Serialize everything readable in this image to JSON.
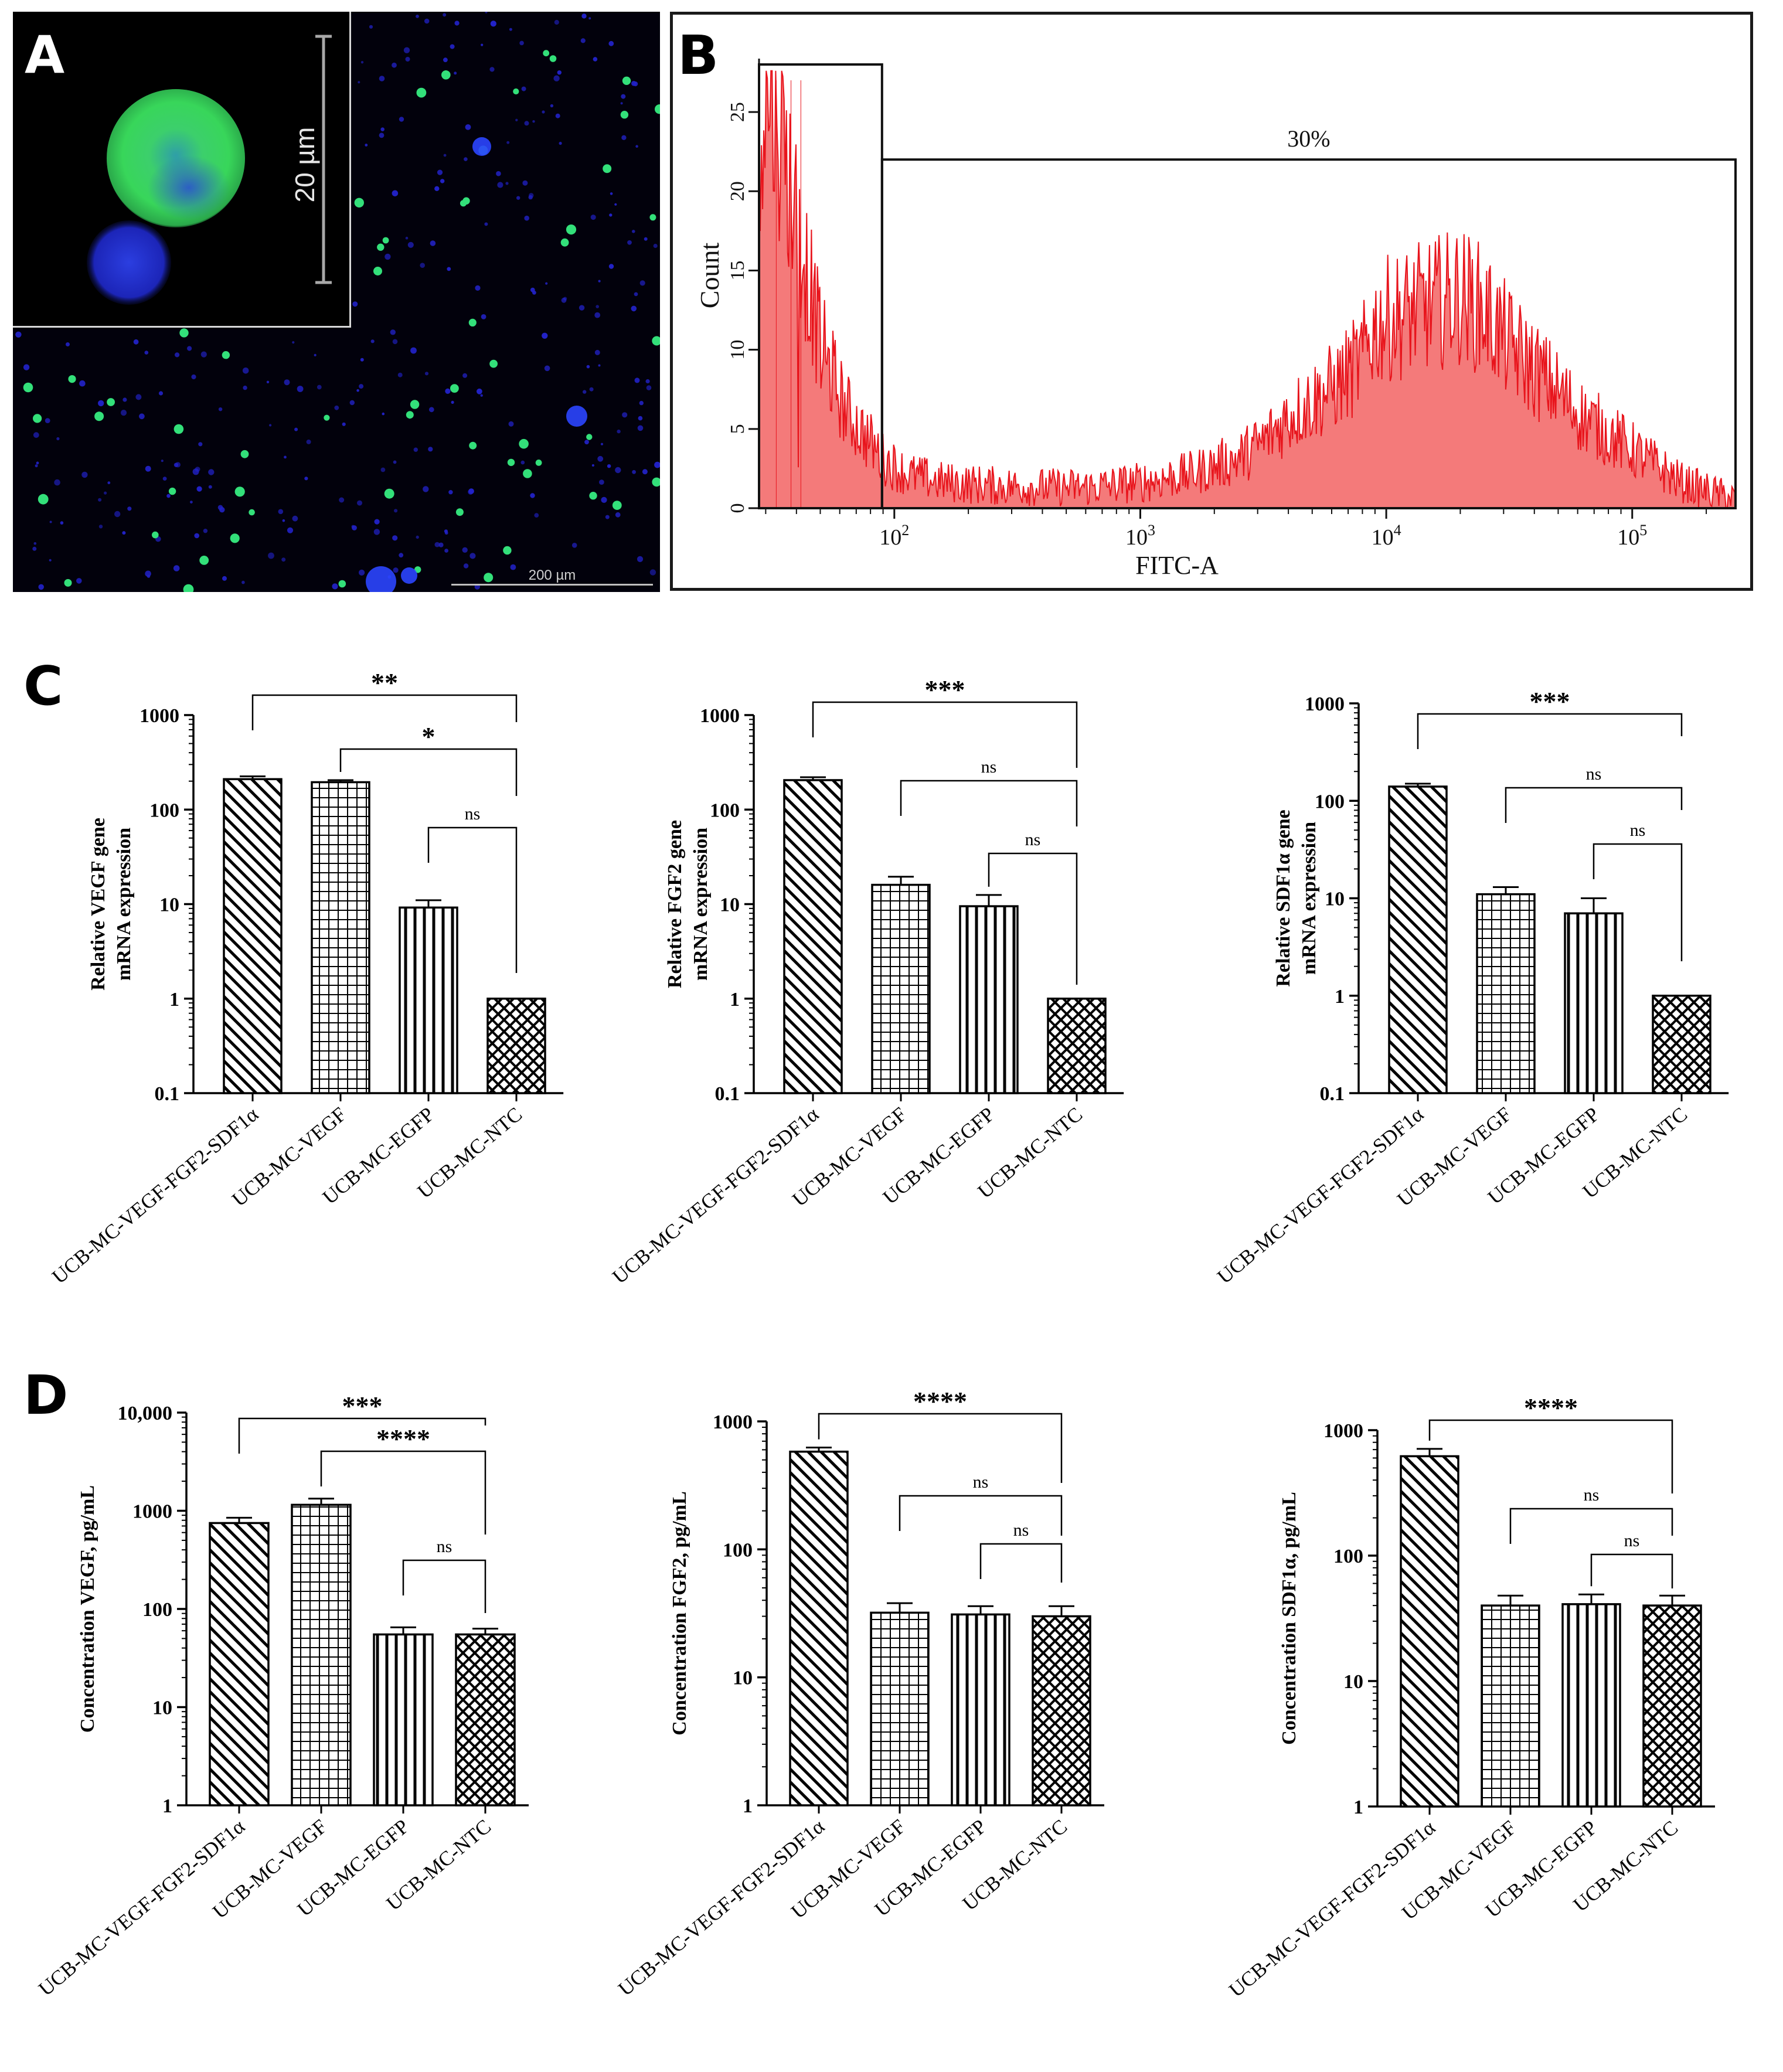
{
  "panels": {
    "a": {
      "letter": "A",
      "inset_scale": "20 µm",
      "scale_bar": "200 µm"
    },
    "b": {
      "letter": "B",
      "gate_label": "30%"
    },
    "c": {
      "letter": "C"
    },
    "d": {
      "letter": "D"
    }
  },
  "colors": {
    "histogram_fill": "#f47a7a",
    "histogram_line": "#e8141c",
    "nucleus_blue": "#2222c8",
    "fluorescent_green": "#33e07a"
  },
  "chart_data": [
    {
      "id": "b",
      "type": "area",
      "xlabel": "FITC-A",
      "ylabel": "Count",
      "x_scale": "log",
      "x_ticks": [
        "10^2",
        "10^3",
        "10^4",
        "10^5"
      ],
      "y_ticks": [
        "0",
        "5",
        "10",
        "15",
        "20",
        "25"
      ],
      "ylim": [
        0,
        28
      ],
      "xlim_log10": [
        1.45,
        5.42
      ],
      "gates": [
        {
          "label": "",
          "x_from_log10": 1.45,
          "x_to_log10": 1.95,
          "height": 28
        },
        {
          "label": "30%",
          "x_from_log10": 1.95,
          "x_to_log10": 5.42,
          "height": 22
        }
      ],
      "profile": [
        [
          1.45,
          24
        ],
        [
          1.5,
          26
        ],
        [
          1.55,
          22
        ],
        [
          1.6,
          18
        ],
        [
          1.65,
          14
        ],
        [
          1.7,
          10
        ],
        [
          1.75,
          8
        ],
        [
          1.8,
          6
        ],
        [
          1.85,
          5
        ],
        [
          1.9,
          4
        ],
        [
          1.95,
          3
        ],
        [
          2.05,
          2
        ],
        [
          2.2,
          1.5
        ],
        [
          2.4,
          1.3
        ],
        [
          2.6,
          1.2
        ],
        [
          2.8,
          1.2
        ],
        [
          3.0,
          1.5
        ],
        [
          3.2,
          2
        ],
        [
          3.4,
          3
        ],
        [
          3.5,
          4
        ],
        [
          3.6,
          5.5
        ],
        [
          3.7,
          6.5
        ],
        [
          3.8,
          7.5
        ],
        [
          3.9,
          9
        ],
        [
          3.95,
          11
        ],
        [
          4.0,
          11.5
        ],
        [
          4.1,
          12
        ],
        [
          4.2,
          12.5
        ],
        [
          4.3,
          13
        ],
        [
          4.4,
          12
        ],
        [
          4.5,
          10
        ],
        [
          4.6,
          8.5
        ],
        [
          4.7,
          7
        ],
        [
          4.8,
          5.5
        ],
        [
          4.9,
          4.5
        ],
        [
          5.0,
          3.5
        ],
        [
          5.1,
          2.5
        ],
        [
          5.2,
          1.5
        ],
        [
          5.3,
          1
        ],
        [
          5.42,
          0.5
        ]
      ]
    },
    {
      "id": "c1",
      "type": "bar",
      "categories": [
        "UCB-MC-VEGF-FGF2-SDF1α",
        "UCB-MC-VEGF",
        "UCB-MC-EGFP",
        "UCB-MC-NTC"
      ],
      "values": [
        210,
        195,
        9.2,
        1
      ],
      "errors": [
        15,
        10,
        1.8,
        0
      ],
      "ylabel_lines": [
        "Relative VEGF gene",
        "mRNA expression"
      ],
      "y_scale": "log",
      "ylim": [
        0.1,
        1000
      ],
      "y_ticks": [
        "0.1",
        "1",
        "10",
        "100",
        "1000"
      ],
      "y_tick_values": [
        0.1,
        1,
        10,
        100,
        1000
      ],
      "comparisons": [
        {
          "from": 0,
          "to": 3,
          "label": "**"
        },
        {
          "from": 1,
          "to": 3,
          "label": "*"
        },
        {
          "from": 2,
          "to": 3,
          "label": "ns"
        }
      ]
    },
    {
      "id": "c2",
      "type": "bar",
      "categories": [
        "UCB-MC-VEGF-FGF2-SDF1α",
        "UCB-MC-VEGF",
        "UCB-MC-EGFP",
        "UCB-MC-NTC"
      ],
      "values": [
        205,
        16,
        9.5,
        1
      ],
      "errors": [
        15,
        3.5,
        3,
        0
      ],
      "ylabel_lines": [
        "Relative FGF2 gene",
        "mRNA expression"
      ],
      "y_scale": "log",
      "ylim": [
        0.1,
        1000
      ],
      "y_ticks": [
        "0.1",
        "1",
        "10",
        "100",
        "1000"
      ],
      "y_tick_values": [
        0.1,
        1,
        10,
        100,
        1000
      ],
      "comparisons": [
        {
          "from": 0,
          "to": 3,
          "label": "***"
        },
        {
          "from": 1,
          "to": 3,
          "label": "ns"
        },
        {
          "from": 2,
          "to": 3,
          "label": "ns"
        }
      ]
    },
    {
      "id": "c3",
      "type": "bar",
      "categories": [
        "UCB-MC-VEGF-FGF2-SDF1α",
        "UCB-MC-VEGF",
        "UCB-MC-EGFP",
        "UCB-MC-NTC"
      ],
      "values": [
        140,
        11,
        7,
        1
      ],
      "errors": [
        10,
        2,
        3,
        0
      ],
      "ylabel_lines": [
        "Relative SDF1α gene",
        "mRNA expression"
      ],
      "y_scale": "log",
      "ylim": [
        0.1,
        1000
      ],
      "y_ticks": [
        "0.1",
        "1",
        "10",
        "100",
        "1000"
      ],
      "y_tick_values": [
        0.1,
        1,
        10,
        100,
        1000
      ],
      "comparisons": [
        {
          "from": 0,
          "to": 3,
          "label": "***"
        },
        {
          "from": 1,
          "to": 3,
          "label": "ns"
        },
        {
          "from": 2,
          "to": 3,
          "label": "ns"
        }
      ]
    },
    {
      "id": "d1",
      "type": "bar",
      "categories": [
        "UCB-MC-VEGF-FGF2-SDF1α",
        "UCB-MC-VEGF",
        "UCB-MC-EGFP",
        "UCB-MC-NTC"
      ],
      "values": [
        750,
        1150,
        55,
        55
      ],
      "errors": [
        100,
        180,
        10,
        8
      ],
      "ylabel_lines": [
        "Concentration VEGF, pg/mL"
      ],
      "y_scale": "log",
      "ylim": [
        1,
        10000
      ],
      "y_ticks": [
        "1",
        "10",
        "100",
        "1000",
        "10,000"
      ],
      "y_tick_values": [
        1,
        10,
        100,
        1000,
        10000
      ],
      "comparisons": [
        {
          "from": 0,
          "to": 3,
          "label": "***"
        },
        {
          "from": 1,
          "to": 3,
          "label": "****"
        },
        {
          "from": 2,
          "to": 3,
          "label": "ns"
        }
      ]
    },
    {
      "id": "d2",
      "type": "bar",
      "categories": [
        "UCB-MC-VEGF-FGF2-SDF1α",
        "UCB-MC-VEGF",
        "UCB-MC-EGFP",
        "UCB-MC-NTC"
      ],
      "values": [
        580,
        32,
        31,
        30
      ],
      "errors": [
        45,
        6,
        5,
        6
      ],
      "ylabel_lines": [
        "Concentration FGF2, pg/mL"
      ],
      "y_scale": "log",
      "ylim": [
        1,
        1000
      ],
      "y_ticks": [
        "1",
        "10",
        "100",
        "1000"
      ],
      "y_tick_values": [
        1,
        10,
        100,
        1000
      ],
      "comparisons": [
        {
          "from": 0,
          "to": 3,
          "label": "****"
        },
        {
          "from": 1,
          "to": 3,
          "label": "ns"
        },
        {
          "from": 2,
          "to": 3,
          "label": "ns"
        }
      ]
    },
    {
      "id": "d3",
      "type": "bar",
      "categories": [
        "UCB-MC-VEGF-FGF2-SDF1α",
        "UCB-MC-VEGF",
        "UCB-MC-EGFP",
        "UCB-MC-NTC"
      ],
      "values": [
        620,
        40,
        41,
        40
      ],
      "errors": [
        90,
        8,
        8,
        8
      ],
      "ylabel_lines": [
        "Concentration SDF1α, pg/mL"
      ],
      "y_scale": "log",
      "ylim": [
        1,
        1000
      ],
      "y_ticks": [
        "1",
        "10",
        "100",
        "1000"
      ],
      "y_tick_values": [
        1,
        10,
        100,
        1000
      ],
      "comparisons": [
        {
          "from": 0,
          "to": 3,
          "label": "****"
        },
        {
          "from": 1,
          "to": 3,
          "label": "ns"
        },
        {
          "from": 2,
          "to": 3,
          "label": "ns"
        }
      ]
    }
  ]
}
